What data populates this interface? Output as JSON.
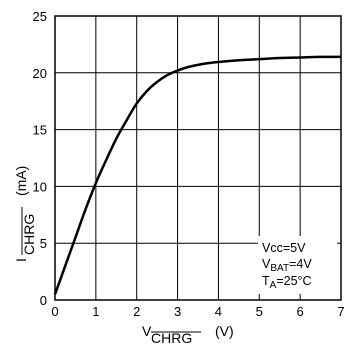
{
  "chart_data": {
    "type": "line",
    "xlim": [
      0,
      7
    ],
    "ylim": [
      0,
      25
    ],
    "x_ticks": [
      "0",
      "1",
      "2",
      "3",
      "4",
      "5",
      "6",
      "7"
    ],
    "y_ticks": [
      "0",
      "5",
      "10",
      "15",
      "20",
      "25"
    ],
    "grid": true,
    "xlabel": {
      "main": "V",
      "sub": "CHRG",
      "unit": "(V)"
    },
    "ylabel": {
      "main": "I",
      "sub": "CHRG",
      "unit": "(mA)"
    },
    "conditions": [
      {
        "main": "Vcc=5V",
        "sub": "",
        "rest": ""
      },
      {
        "main": "V",
        "sub": "BAT",
        "rest": "=4V"
      },
      {
        "main": "T",
        "sub": "A",
        "rest": "=25°C"
      }
    ],
    "series": [
      {
        "x": [
          0,
          0.25,
          0.5,
          0.75,
          1.0,
          1.25,
          1.5,
          1.75,
          2.0,
          2.25,
          2.5,
          2.75,
          3.0,
          3.25,
          3.5,
          3.75,
          4.0,
          4.5,
          5.0,
          5.5,
          6.0,
          6.5,
          7.0
        ],
        "y": [
          0.5,
          3.0,
          5.5,
          8.0,
          10.3,
          12.3,
          14.2,
          15.8,
          17.3,
          18.4,
          19.2,
          19.8,
          20.2,
          20.5,
          20.7,
          20.85,
          20.95,
          21.1,
          21.2,
          21.3,
          21.35,
          21.4,
          21.4
        ]
      }
    ]
  }
}
